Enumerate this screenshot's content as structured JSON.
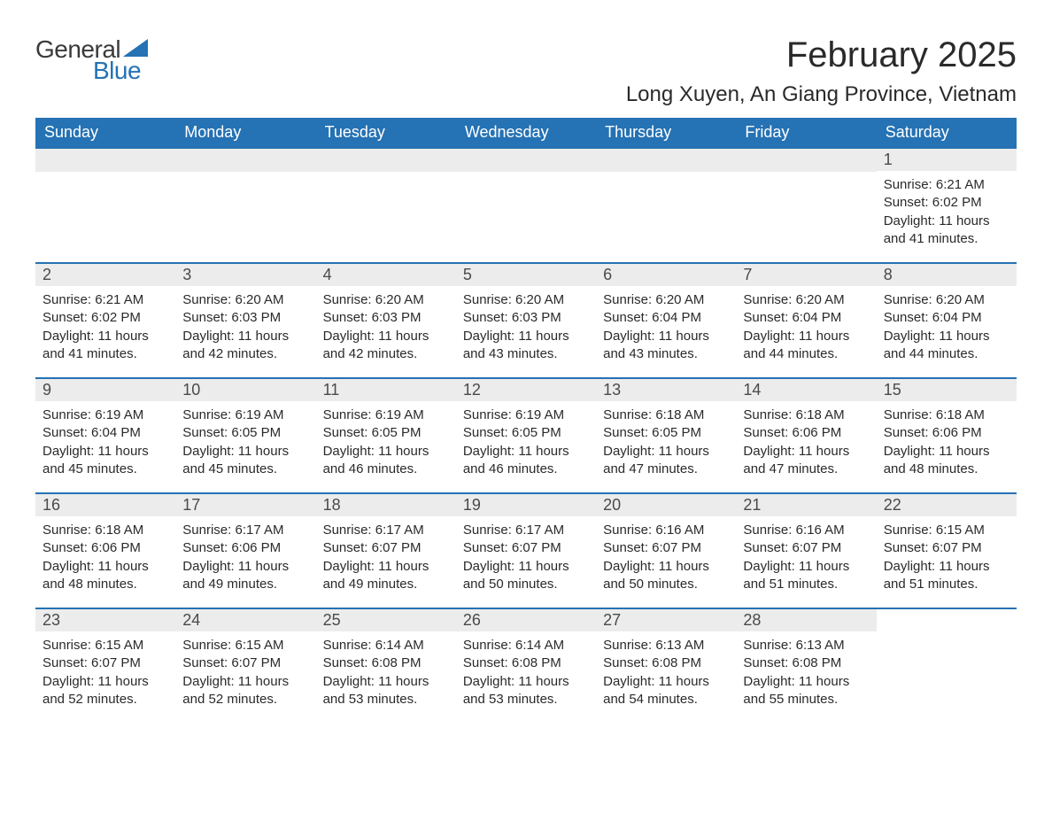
{
  "logo": {
    "text_general": "General",
    "text_blue": "Blue",
    "triangle_color": "#2572b4"
  },
  "title": "February 2025",
  "location": "Long Xuyen, An Giang Province, Vietnam",
  "colors": {
    "header_bg": "#2572b4",
    "header_text": "#ffffff",
    "daynum_bg": "#ececec",
    "week_border": "#2572b4",
    "text": "#2a2a2a"
  },
  "day_headers": [
    "Sunday",
    "Monday",
    "Tuesday",
    "Wednesday",
    "Thursday",
    "Friday",
    "Saturday"
  ],
  "weeks": [
    [
      null,
      null,
      null,
      null,
      null,
      null,
      {
        "d": "1",
        "sunrise": "6:21 AM",
        "sunset": "6:02 PM",
        "daylight": "11 hours and 41 minutes."
      }
    ],
    [
      {
        "d": "2",
        "sunrise": "6:21 AM",
        "sunset": "6:02 PM",
        "daylight": "11 hours and 41 minutes."
      },
      {
        "d": "3",
        "sunrise": "6:20 AM",
        "sunset": "6:03 PM",
        "daylight": "11 hours and 42 minutes."
      },
      {
        "d": "4",
        "sunrise": "6:20 AM",
        "sunset": "6:03 PM",
        "daylight": "11 hours and 42 minutes."
      },
      {
        "d": "5",
        "sunrise": "6:20 AM",
        "sunset": "6:03 PM",
        "daylight": "11 hours and 43 minutes."
      },
      {
        "d": "6",
        "sunrise": "6:20 AM",
        "sunset": "6:04 PM",
        "daylight": "11 hours and 43 minutes."
      },
      {
        "d": "7",
        "sunrise": "6:20 AM",
        "sunset": "6:04 PM",
        "daylight": "11 hours and 44 minutes."
      },
      {
        "d": "8",
        "sunrise": "6:20 AM",
        "sunset": "6:04 PM",
        "daylight": "11 hours and 44 minutes."
      }
    ],
    [
      {
        "d": "9",
        "sunrise": "6:19 AM",
        "sunset": "6:04 PM",
        "daylight": "11 hours and 45 minutes."
      },
      {
        "d": "10",
        "sunrise": "6:19 AM",
        "sunset": "6:05 PM",
        "daylight": "11 hours and 45 minutes."
      },
      {
        "d": "11",
        "sunrise": "6:19 AM",
        "sunset": "6:05 PM",
        "daylight": "11 hours and 46 minutes."
      },
      {
        "d": "12",
        "sunrise": "6:19 AM",
        "sunset": "6:05 PM",
        "daylight": "11 hours and 46 minutes."
      },
      {
        "d": "13",
        "sunrise": "6:18 AM",
        "sunset": "6:05 PM",
        "daylight": "11 hours and 47 minutes."
      },
      {
        "d": "14",
        "sunrise": "6:18 AM",
        "sunset": "6:06 PM",
        "daylight": "11 hours and 47 minutes."
      },
      {
        "d": "15",
        "sunrise": "6:18 AM",
        "sunset": "6:06 PM",
        "daylight": "11 hours and 48 minutes."
      }
    ],
    [
      {
        "d": "16",
        "sunrise": "6:18 AM",
        "sunset": "6:06 PM",
        "daylight": "11 hours and 48 minutes."
      },
      {
        "d": "17",
        "sunrise": "6:17 AM",
        "sunset": "6:06 PM",
        "daylight": "11 hours and 49 minutes."
      },
      {
        "d": "18",
        "sunrise": "6:17 AM",
        "sunset": "6:07 PM",
        "daylight": "11 hours and 49 minutes."
      },
      {
        "d": "19",
        "sunrise": "6:17 AM",
        "sunset": "6:07 PM",
        "daylight": "11 hours and 50 minutes."
      },
      {
        "d": "20",
        "sunrise": "6:16 AM",
        "sunset": "6:07 PM",
        "daylight": "11 hours and 50 minutes."
      },
      {
        "d": "21",
        "sunrise": "6:16 AM",
        "sunset": "6:07 PM",
        "daylight": "11 hours and 51 minutes."
      },
      {
        "d": "22",
        "sunrise": "6:15 AM",
        "sunset": "6:07 PM",
        "daylight": "11 hours and 51 minutes."
      }
    ],
    [
      {
        "d": "23",
        "sunrise": "6:15 AM",
        "sunset": "6:07 PM",
        "daylight": "11 hours and 52 minutes."
      },
      {
        "d": "24",
        "sunrise": "6:15 AM",
        "sunset": "6:07 PM",
        "daylight": "11 hours and 52 minutes."
      },
      {
        "d": "25",
        "sunrise": "6:14 AM",
        "sunset": "6:08 PM",
        "daylight": "11 hours and 53 minutes."
      },
      {
        "d": "26",
        "sunrise": "6:14 AM",
        "sunset": "6:08 PM",
        "daylight": "11 hours and 53 minutes."
      },
      {
        "d": "27",
        "sunrise": "6:13 AM",
        "sunset": "6:08 PM",
        "daylight": "11 hours and 54 minutes."
      },
      {
        "d": "28",
        "sunrise": "6:13 AM",
        "sunset": "6:08 PM",
        "daylight": "11 hours and 55 minutes."
      },
      null
    ]
  ],
  "labels": {
    "sunrise": "Sunrise: ",
    "sunset": "Sunset: ",
    "daylight": "Daylight: "
  }
}
